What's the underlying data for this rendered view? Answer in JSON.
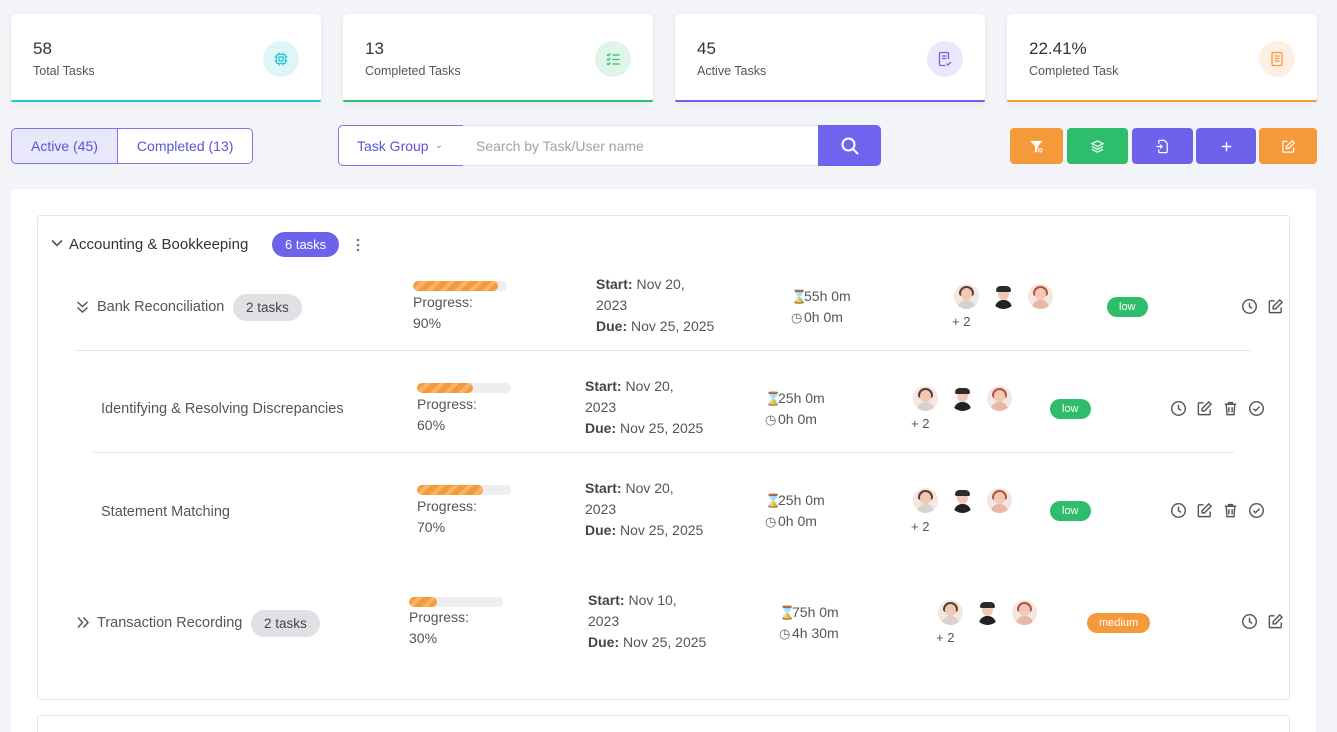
{
  "stats": [
    {
      "value": "58",
      "label": "Total Tasks",
      "icon": "cpu-icon",
      "color": "#1fc4d6",
      "bg": "#dff6f9"
    },
    {
      "value": "13",
      "label": "Completed Tasks",
      "icon": "checklist-icon",
      "color": "#2ebd6a",
      "bg": "#dff5e8"
    },
    {
      "value": "45",
      "label": "Active Tasks",
      "icon": "document-check-icon",
      "color": "#6f62ea",
      "bg": "#eae8fb"
    },
    {
      "value": "22.41%",
      "label": "Completed Task",
      "icon": "document-icon",
      "color": "#f59a3a",
      "bg": "#fdf0e2"
    }
  ],
  "tabs": {
    "active": "Active (45)",
    "completed": "Completed (13)"
  },
  "search": {
    "group_label": "Task Group",
    "placeholder": "Search by Task/User name"
  },
  "toolbar": [
    {
      "name": "clear-filter-button",
      "icon": "filter-x-icon",
      "color": "#f59a3a"
    },
    {
      "name": "layers-button",
      "icon": "layers-icon",
      "color": "#2ebd6a"
    },
    {
      "name": "import-button",
      "icon": "file-import-icon",
      "color": "#6f62ea"
    },
    {
      "name": "add-button",
      "icon": "plus-icon",
      "color": "#6f62ea"
    },
    {
      "name": "edit-button",
      "icon": "edit-icon",
      "color": "#f59a3a"
    }
  ],
  "group": {
    "title": "Accounting & Bookkeeping",
    "count": "6 tasks"
  },
  "tasks": [
    {
      "name": "Bank Reconciliation",
      "count": "2 tasks",
      "progress_label": "Progress:",
      "progress_value": "90%",
      "progress": 0.9,
      "start_label": "Start:",
      "start_a": "Nov 20,",
      "start_b": "2023",
      "due_label": "Due:",
      "due": "Nov 25, 2025",
      "estimate": "55h 0m",
      "logged": "0h 0m",
      "more": "+ 2",
      "priority": "low"
    },
    {
      "name": "Identifying & Resolving Discrepancies",
      "progress_label": "Progress:",
      "progress_value": "60%",
      "progress": 0.6,
      "start_label": "Start:",
      "start_a": "Nov 20,",
      "start_b": "2023",
      "due_label": "Due:",
      "due": "Nov 25, 2025",
      "estimate": "25h 0m",
      "logged": "0h 0m",
      "more": "+ 2",
      "priority": "low"
    },
    {
      "name": "Statement Matching",
      "progress_label": "Progress:",
      "progress_value": "70%",
      "progress": 0.7,
      "start_label": "Start:",
      "start_a": "Nov 20,",
      "start_b": "2023",
      "due_label": "Due:",
      "due": "Nov 25, 2025",
      "estimate": "25h 0m",
      "logged": "0h 0m",
      "more": "+ 2",
      "priority": "low"
    },
    {
      "name": "Transaction Recording",
      "count": "2 tasks",
      "progress_label": "Progress:",
      "progress_value": "30%",
      "progress": 0.3,
      "start_label": "Start:",
      "start_a": "Nov 10,",
      "start_b": "2023",
      "due_label": "Due:",
      "due": "Nov 25, 2025",
      "estimate": "75h 0m",
      "logged": "4h 30m",
      "more": "+ 2",
      "priority": "medium"
    }
  ],
  "colors": {
    "accent": "#6f62ea",
    "low": "#2ebd6a",
    "medium": "#f59a3a"
  }
}
